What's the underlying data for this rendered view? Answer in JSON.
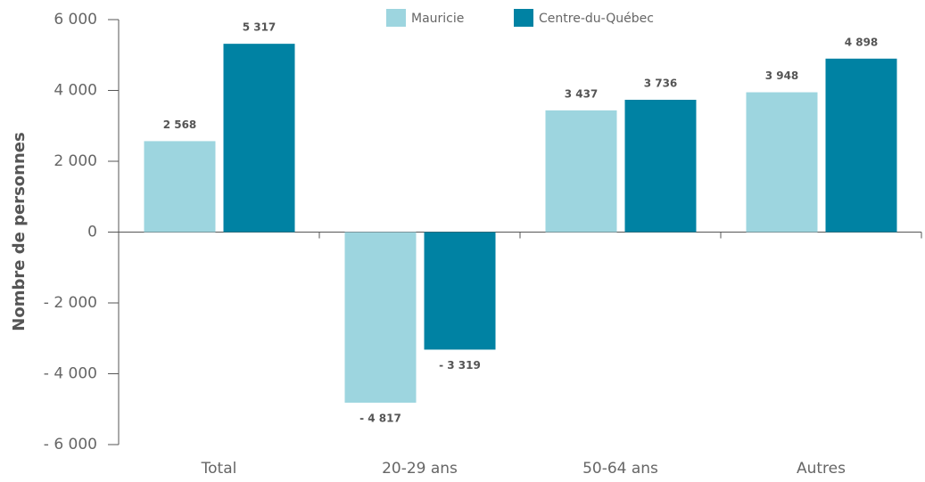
{
  "chart_data": {
    "type": "bar",
    "y_label": "Nombre de personnes",
    "categories": [
      "Total",
      "20-29 ans",
      "50-64 ans",
      "Autres"
    ],
    "series": [
      {
        "name": "Mauricie",
        "color": "#9dd5df",
        "values": [
          2568,
          -4817,
          3437,
          3948
        ],
        "value_labels": [
          "2 568",
          "- 4 817",
          "3 437",
          "3 948"
        ]
      },
      {
        "name": "Centre-du-Québec",
        "color": "#0082a3",
        "values": [
          5317,
          -3319,
          3736,
          4898
        ],
        "value_labels": [
          "5 317",
          "- 3 319",
          "3 736",
          "4 898"
        ]
      }
    ],
    "ylim": [
      -6000,
      6000
    ],
    "yticks": [
      {
        "value": -6000,
        "label": "- 6 000"
      },
      {
        "value": -4000,
        "label": "- 4 000"
      },
      {
        "value": -2000,
        "label": "- 2 000"
      },
      0,
      {
        "value": 2000,
        "label": "2 000"
      },
      {
        "value": 4000,
        "label": "4 000"
      },
      {
        "value": 6000,
        "label": "6 000"
      }
    ],
    "legend": "top"
  }
}
